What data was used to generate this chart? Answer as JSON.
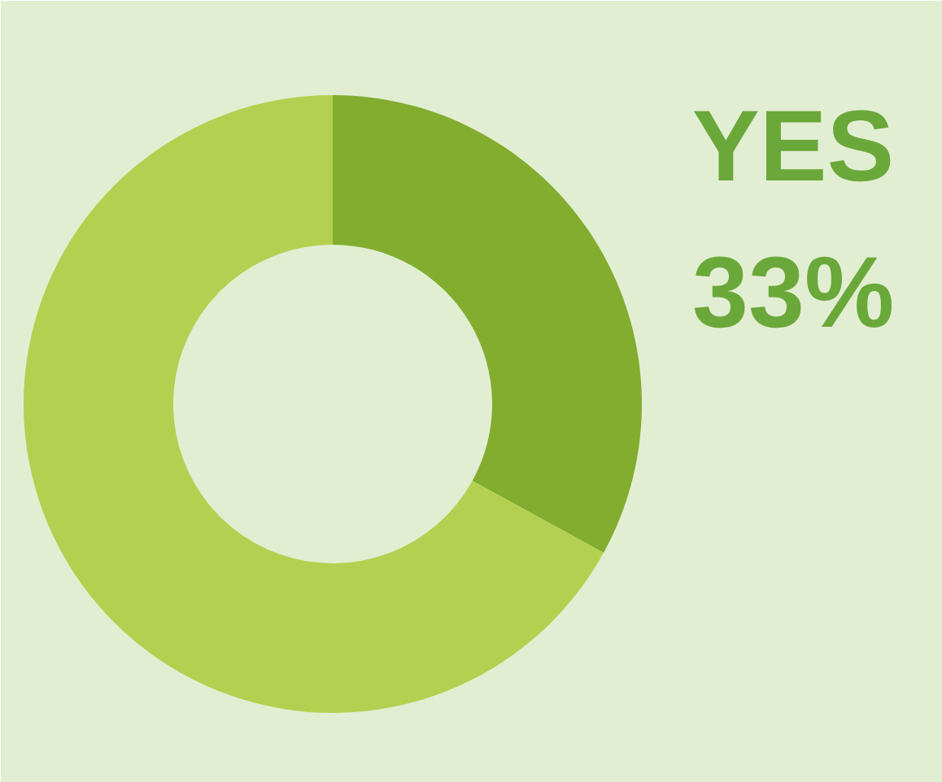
{
  "chart_data": {
    "type": "donut",
    "categories": [
      "YES",
      null
    ],
    "values": [
      33,
      67
    ],
    "colors": [
      "#82ad2f",
      "#b5d050"
    ],
    "value_labels": [
      "33%",
      null
    ]
  }
}
